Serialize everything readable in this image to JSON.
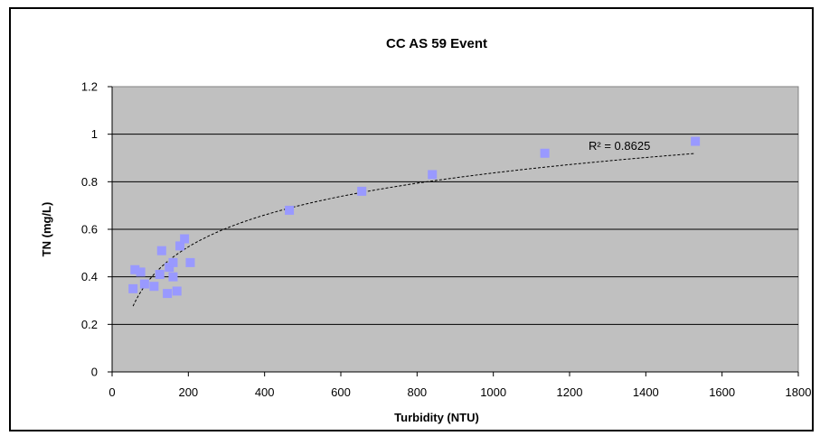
{
  "chart_data": {
    "type": "scatter",
    "title": "CC AS 59 Event",
    "xlabel": "Turbidity (NTU)",
    "ylabel": "TN (mg/L)",
    "xlim": [
      0,
      1800
    ],
    "ylim": [
      0,
      1.2
    ],
    "x_ticks": [
      "0",
      "200",
      "400",
      "600",
      "800",
      "1000",
      "1200",
      "1400",
      "1600",
      "1800"
    ],
    "y_ticks": [
      "0",
      "0.2",
      "0.4",
      "0.6",
      "0.8",
      "1",
      "1.2"
    ],
    "grid": "horizontal",
    "plot_background": "#c0c0c0",
    "marker_color": "#9999ff",
    "trendline": {
      "type": "logarithmic",
      "r_squared_label": "R² = 0.8625",
      "x_start": 55,
      "x_end": 1530
    },
    "series": [
      {
        "points": [
          [
            55,
            0.35
          ],
          [
            60,
            0.43
          ],
          [
            75,
            0.42
          ],
          [
            85,
            0.37
          ],
          [
            110,
            0.36
          ],
          [
            125,
            0.41
          ],
          [
            130,
            0.51
          ],
          [
            145,
            0.33
          ],
          [
            150,
            0.44
          ],
          [
            160,
            0.46
          ],
          [
            160,
            0.4
          ],
          [
            170,
            0.34
          ],
          [
            178,
            0.53
          ],
          [
            190,
            0.56
          ],
          [
            205,
            0.46
          ],
          [
            465,
            0.68
          ],
          [
            655,
            0.76
          ],
          [
            840,
            0.83
          ],
          [
            1135,
            0.92
          ],
          [
            1530,
            0.97
          ]
        ]
      }
    ]
  }
}
